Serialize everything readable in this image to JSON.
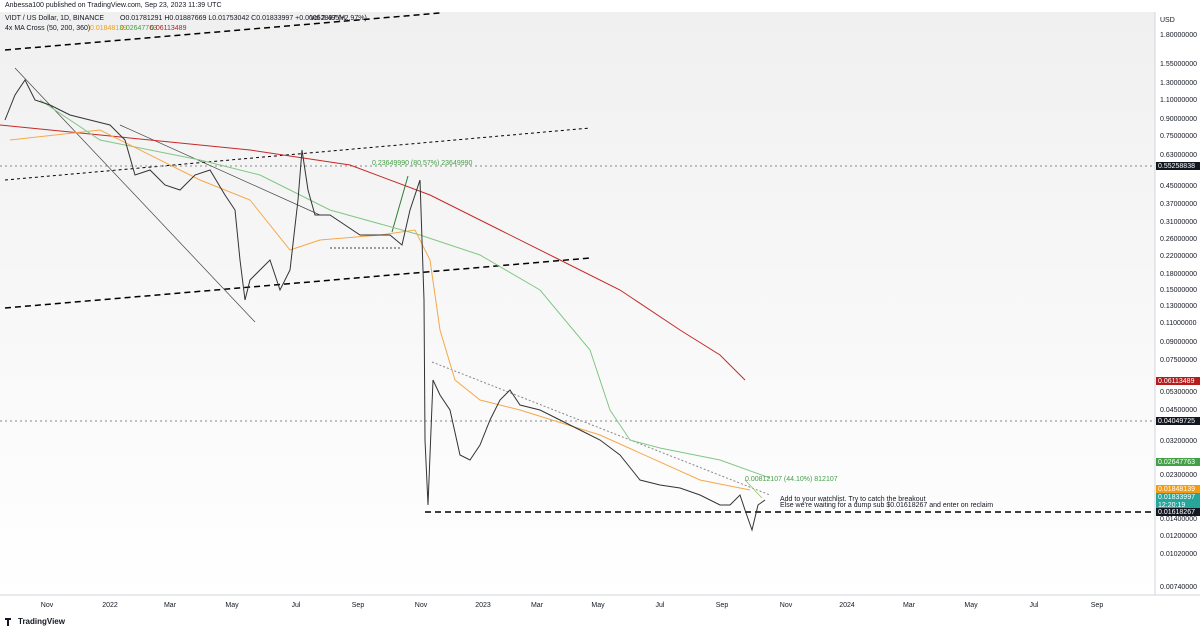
{
  "header": {
    "publisher": "Anbessa100 published on TradingView.com, Sep 23, 2023 11:39 UTC",
    "symbol": "VIDT / US Dollar, 1D, BINANCE",
    "ohlc": "O0.01781291 H0.01887669 L0.01753042 C0.01833997 +0.00052897 (+2.97%)",
    "volume": "Vol 2.495M",
    "indicator": "4x MA Cross (50, 200, 360)",
    "indicator_values": [
      "0.01848139",
      "0.02647763",
      "0.06113489"
    ]
  },
  "price_axis": {
    "currency": "USD",
    "labels": [
      "1.80000000",
      "1.55000000",
      "1.30000000",
      "1.10000000",
      "0.90000000",
      "0.75000000",
      "0.63000000",
      "0.45000000",
      "0.37000000",
      "0.31000000",
      "0.26000000",
      "0.22000000",
      "0.18000000",
      "0.15000000",
      "0.13000000",
      "0.11000000",
      "0.09000000",
      "0.07500000",
      "0.05300000",
      "0.04500000",
      "0.03200000",
      "0.02300000",
      "0.01400000",
      "0.01200000",
      "0.01020000",
      "0.00740000"
    ]
  },
  "price_tags": [
    {
      "label": "0.55258838",
      "color": "#131722"
    },
    {
      "label": "0.06113489",
      "color": "#b71c1c"
    },
    {
      "label": "0.04049725",
      "color": "#131722"
    },
    {
      "label": "0.02647763",
      "color": "#43a047"
    },
    {
      "label": "0.01848139",
      "color": "#f39c12"
    },
    {
      "label": "0.01833997",
      "color": "#26a69a",
      "countdown": "12:20:19"
    },
    {
      "label": "0.01618267",
      "color": "#131722"
    }
  ],
  "time_axis": [
    "Nov",
    "2022",
    "Mar",
    "May",
    "Jul",
    "Sep",
    "Nov",
    "2023",
    "Mar",
    "May",
    "Jul",
    "Sep",
    "Nov",
    "2024",
    "Mar",
    "May",
    "Jul",
    "Sep"
  ],
  "annotations": {
    "measure_top": "0.23649990 (80.57%) 23649990",
    "measure_bottom": "0.00812107 (44.10%) 812107",
    "note": [
      "Add to your watchlist. Try to catch the breakout",
      "Else we're waiting for a dump sub $0.01618267 and enter on reclaim"
    ]
  },
  "footer": "TradingView"
}
